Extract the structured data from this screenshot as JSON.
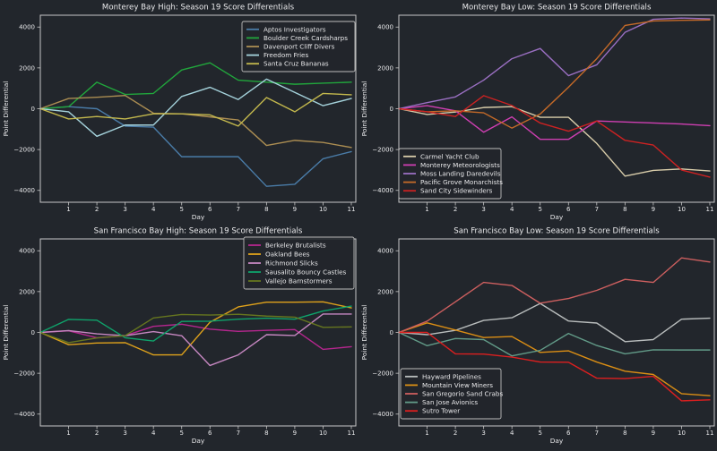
{
  "figure": {
    "background": "#22262c",
    "text_color": "#e8e8ea",
    "spine_color": "#c7c7c7",
    "legend_border_color": "#bdbdbd"
  },
  "chart_data": [
    {
      "type": "line",
      "title": "Monterey Bay High: Season 19 Score Differentials",
      "xlabel": "Day",
      "ylabel": "Point Differential",
      "x": [
        0,
        1,
        2,
        3,
        4,
        5,
        6,
        7,
        8,
        9,
        10,
        11
      ],
      "xticks": [
        1,
        2,
        3,
        4,
        5,
        6,
        7,
        8,
        9,
        10,
        11
      ],
      "yticks": [
        -4000,
        -2000,
        0,
        2000,
        4000
      ],
      "xlim": [
        0,
        11.16
      ],
      "ylim": [
        -4580,
        4580
      ],
      "grid": false,
      "legend_position": "upper-right",
      "series": [
        {
          "name": "Aptos Investigators",
          "color": "#4a7ca8",
          "values": [
            0,
            100,
            0,
            -850,
            -900,
            -2350,
            -2350,
            -2350,
            -3800,
            -3700,
            -2450,
            -2100
          ]
        },
        {
          "name": "Boulder Creek Cardsharps",
          "color": "#21a63c",
          "values": [
            0,
            100,
            1300,
            700,
            750,
            1900,
            2250,
            1400,
            1300,
            1200,
            1250,
            1300
          ]
        },
        {
          "name": "Davenport Cliff Divers",
          "color": "#ab8d52",
          "values": [
            0,
            500,
            560,
            650,
            -220,
            -250,
            -400,
            -550,
            -1800,
            -1550,
            -1650,
            -1900
          ]
        },
        {
          "name": "Freedom Fries",
          "color": "#a5d3dc",
          "values": [
            0,
            -150,
            -1350,
            -800,
            -800,
            600,
            1050,
            450,
            1450,
            800,
            150,
            500
          ]
        },
        {
          "name": "Santa Cruz Bananas",
          "color": "#c3b84d",
          "values": [
            0,
            -500,
            -380,
            -500,
            -250,
            -250,
            -300,
            -850,
            550,
            -150,
            750,
            680
          ]
        }
      ]
    },
    {
      "type": "line",
      "title": "Monterey Bay Low: Season 19 Score Differentials",
      "xlabel": "Day",
      "ylabel": "Point Differential",
      "x": [
        0,
        1,
        2,
        3,
        4,
        5,
        6,
        7,
        8,
        9,
        10,
        11
      ],
      "xticks": [
        1,
        2,
        3,
        4,
        5,
        6,
        7,
        8,
        9,
        10,
        11
      ],
      "yticks": [
        -4000,
        -2000,
        0,
        2000,
        4000
      ],
      "xlim": [
        0,
        11.16
      ],
      "ylim": [
        -4580,
        4580
      ],
      "grid": false,
      "legend_position": "lower-left",
      "series": [
        {
          "name": "Carmel Yacht Club",
          "color": "#d9cdaa",
          "values": [
            0,
            -280,
            -160,
            60,
            100,
            -420,
            -420,
            -1700,
            -3300,
            -3020,
            -2950,
            -3050
          ]
        },
        {
          "name": "Monterey Meteorologists",
          "color": "#cf3fb2",
          "values": [
            0,
            150,
            -100,
            -1150,
            -400,
            -1500,
            -1500,
            -600,
            -650,
            -700,
            -750,
            -830
          ]
        },
        {
          "name": "Moss Landing Daredevils",
          "color": "#9a6fc2",
          "values": [
            0,
            300,
            580,
            1400,
            2450,
            2950,
            1620,
            2150,
            3740,
            4380,
            4440,
            4400
          ]
        },
        {
          "name": "Pacific Grove Monarchists",
          "color": "#c56a28",
          "values": [
            0,
            -150,
            -100,
            -200,
            -950,
            -260,
            1050,
            2450,
            4080,
            4300,
            4330,
            4350
          ]
        },
        {
          "name": "Sand City Sidewinders",
          "color": "#cc2222",
          "values": [
            0,
            -150,
            -380,
            640,
            160,
            -700,
            -1100,
            -600,
            -1550,
            -1780,
            -3000,
            -3350
          ]
        }
      ]
    },
    {
      "type": "line",
      "title": "San Francisco Bay High: Season 19 Score Differentials",
      "xlabel": "Day",
      "ylabel": "Point Differential",
      "x": [
        0,
        1,
        2,
        3,
        4,
        5,
        6,
        7,
        8,
        9,
        10,
        11
      ],
      "xticks": [
        1,
        2,
        3,
        4,
        5,
        6,
        7,
        8,
        9,
        10,
        11
      ],
      "yticks": [
        -4000,
        -2000,
        0,
        2000,
        4000
      ],
      "xlim": [
        0,
        11.16
      ],
      "ylim": [
        -4580,
        4580
      ],
      "grid": false,
      "legend_position": "upper-right",
      "series": [
        {
          "name": "Berkeley Brutalists",
          "color": "#b5268e",
          "values": [
            0,
            80,
            -260,
            -160,
            300,
            400,
            160,
            50,
            100,
            140,
            -830,
            -700
          ]
        },
        {
          "name": "Oakland Bees",
          "color": "#dfa21b",
          "values": [
            0,
            -600,
            -520,
            -500,
            -1100,
            -1100,
            500,
            1250,
            1480,
            1480,
            1500,
            1200
          ]
        },
        {
          "name": "Richmond Slicks",
          "color": "#c687c1",
          "values": [
            0,
            90,
            -70,
            -160,
            40,
            -160,
            -1620,
            -1100,
            -110,
            -150,
            900,
            900
          ]
        },
        {
          "name": "Sausalito Bouncy Castles",
          "color": "#0fa36b",
          "values": [
            0,
            640,
            600,
            -260,
            -420,
            540,
            550,
            650,
            700,
            650,
            1050,
            1290
          ]
        },
        {
          "name": "Vallejo Barnstormers",
          "color": "#66761f",
          "values": [
            0,
            -500,
            -270,
            -160,
            710,
            880,
            850,
            890,
            800,
            750,
            250,
            270
          ]
        }
      ]
    },
    {
      "type": "line",
      "title": "San Francisco Bay Low: Season 19 Score Differentials",
      "xlabel": "Day",
      "ylabel": "Point Differential",
      "x": [
        0,
        1,
        2,
        3,
        4,
        5,
        6,
        7,
        8,
        9,
        10,
        11
      ],
      "xticks": [
        1,
        2,
        3,
        4,
        5,
        6,
        7,
        8,
        9,
        10,
        11
      ],
      "yticks": [
        -4000,
        -2000,
        0,
        2000,
        4000
      ],
      "xlim": [
        0,
        11.16
      ],
      "ylim": [
        -4580,
        4580
      ],
      "grid": false,
      "legend_position": "lower-left",
      "series": [
        {
          "name": "Hayward Pipelines",
          "color": "#b9bdbd",
          "values": [
            0,
            -110,
            100,
            590,
            720,
            1420,
            560,
            460,
            -450,
            -350,
            650,
            700
          ]
        },
        {
          "name": "Mountain View Miners",
          "color": "#db8e14",
          "values": [
            0,
            470,
            120,
            -250,
            -200,
            -980,
            -900,
            -1450,
            -1900,
            -2060,
            -3000,
            -3100
          ]
        },
        {
          "name": "San Gregorio Sand Crabs",
          "color": "#cd5f5f",
          "values": [
            0,
            550,
            1500,
            2450,
            2300,
            1430,
            1660,
            2060,
            2600,
            2450,
            3650,
            3450
          ]
        },
        {
          "name": "San Jose Avionics",
          "color": "#629b88",
          "values": [
            0,
            -650,
            -300,
            -350,
            -1150,
            -880,
            -50,
            -640,
            -1050,
            -850,
            -860,
            -860
          ]
        },
        {
          "name": "Sutro Tower",
          "color": "#dd1f1f",
          "values": [
            0,
            0,
            -1050,
            -1060,
            -1210,
            -1450,
            -1460,
            -2240,
            -2260,
            -2150,
            -3350,
            -3300
          ]
        }
      ]
    }
  ]
}
